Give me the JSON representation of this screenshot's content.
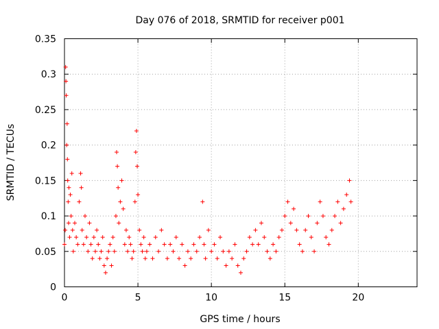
{
  "chart_data": {
    "type": "scatter",
    "title": "Day 076 of 2018, SRMTID for receiver p001",
    "xlabel": "GPS time / hours",
    "ylabel": "SRMTID / TECUs",
    "xlim": [
      0,
      24
    ],
    "ylim": [
      0,
      0.35
    ],
    "xticks": [
      0,
      5,
      10,
      15,
      20
    ],
    "yticks": [
      0,
      0.05,
      0.1,
      0.15,
      0.2,
      0.25,
      0.3,
      0.35
    ],
    "ytick_labels": [
      "0",
      "0.05",
      "0.1",
      "0.15",
      "0.2",
      "0.25",
      "0.3",
      "0.35"
    ],
    "grid": true,
    "marker": "+",
    "color": "#ff0000",
    "series": [
      {
        "name": "SRMTID",
        "points": [
          [
            0.0,
            0.06
          ],
          [
            0.05,
            0.08
          ],
          [
            0.08,
            0.31
          ],
          [
            0.1,
            0.29
          ],
          [
            0.12,
            0.27
          ],
          [
            0.15,
            0.2
          ],
          [
            0.18,
            0.23
          ],
          [
            0.2,
            0.18
          ],
          [
            0.22,
            0.15
          ],
          [
            0.25,
            0.12
          ],
          [
            0.28,
            0.09
          ],
          [
            0.3,
            0.14
          ],
          [
            0.35,
            0.07
          ],
          [
            0.4,
            0.13
          ],
          [
            0.45,
            0.1
          ],
          [
            0.5,
            0.16
          ],
          [
            0.55,
            0.08
          ],
          [
            0.6,
            0.05
          ],
          [
            0.7,
            0.09
          ],
          [
            0.8,
            0.07
          ],
          [
            0.9,
            0.06
          ],
          [
            1.0,
            0.12
          ],
          [
            1.1,
            0.16
          ],
          [
            1.15,
            0.14
          ],
          [
            1.2,
            0.08
          ],
          [
            1.3,
            0.06
          ],
          [
            1.4,
            0.1
          ],
          [
            1.5,
            0.07
          ],
          [
            1.6,
            0.05
          ],
          [
            1.7,
            0.09
          ],
          [
            1.8,
            0.06
          ],
          [
            1.9,
            0.04
          ],
          [
            2.0,
            0.07
          ],
          [
            2.1,
            0.05
          ],
          [
            2.2,
            0.08
          ],
          [
            2.3,
            0.06
          ],
          [
            2.4,
            0.04
          ],
          [
            2.5,
            0.05
          ],
          [
            2.6,
            0.07
          ],
          [
            2.7,
            0.03
          ],
          [
            2.8,
            0.02
          ],
          [
            2.9,
            0.04
          ],
          [
            3.0,
            0.05
          ],
          [
            3.1,
            0.06
          ],
          [
            3.2,
            0.03
          ],
          [
            3.3,
            0.07
          ],
          [
            3.4,
            0.05
          ],
          [
            3.5,
            0.1
          ],
          [
            3.55,
            0.19
          ],
          [
            3.6,
            0.17
          ],
          [
            3.65,
            0.14
          ],
          [
            3.7,
            0.09
          ],
          [
            3.8,
            0.12
          ],
          [
            3.9,
            0.15
          ],
          [
            4.0,
            0.11
          ],
          [
            4.1,
            0.06
          ],
          [
            4.2,
            0.08
          ],
          [
            4.3,
            0.05
          ],
          [
            4.4,
            0.07
          ],
          [
            4.5,
            0.06
          ],
          [
            4.6,
            0.04
          ],
          [
            4.7,
            0.05
          ],
          [
            4.8,
            0.12
          ],
          [
            4.85,
            0.19
          ],
          [
            4.9,
            0.22
          ],
          [
            4.95,
            0.17
          ],
          [
            5.0,
            0.13
          ],
          [
            5.1,
            0.08
          ],
          [
            5.2,
            0.06
          ],
          [
            5.3,
            0.05
          ],
          [
            5.4,
            0.07
          ],
          [
            5.5,
            0.04
          ],
          [
            5.6,
            0.05
          ],
          [
            5.8,
            0.06
          ],
          [
            6.0,
            0.04
          ],
          [
            6.2,
            0.07
          ],
          [
            6.4,
            0.05
          ],
          [
            6.6,
            0.08
          ],
          [
            6.8,
            0.06
          ],
          [
            7.0,
            0.04
          ],
          [
            7.2,
            0.06
          ],
          [
            7.4,
            0.05
          ],
          [
            7.6,
            0.07
          ],
          [
            7.8,
            0.04
          ],
          [
            8.0,
            0.06
          ],
          [
            8.2,
            0.03
          ],
          [
            8.4,
            0.05
          ],
          [
            8.6,
            0.04
          ],
          [
            8.8,
            0.06
          ],
          [
            9.0,
            0.05
          ],
          [
            9.2,
            0.07
          ],
          [
            9.4,
            0.12
          ],
          [
            9.5,
            0.06
          ],
          [
            9.6,
            0.04
          ],
          [
            9.8,
            0.08
          ],
          [
            10.0,
            0.05
          ],
          [
            10.2,
            0.06
          ],
          [
            10.4,
            0.04
          ],
          [
            10.6,
            0.07
          ],
          [
            10.8,
            0.05
          ],
          [
            11.0,
            0.03
          ],
          [
            11.2,
            0.05
          ],
          [
            11.4,
            0.04
          ],
          [
            11.6,
            0.06
          ],
          [
            11.8,
            0.03
          ],
          [
            12.0,
            0.02
          ],
          [
            12.2,
            0.04
          ],
          [
            12.4,
            0.05
          ],
          [
            12.6,
            0.07
          ],
          [
            12.8,
            0.06
          ],
          [
            13.0,
            0.08
          ],
          [
            13.2,
            0.06
          ],
          [
            13.4,
            0.09
          ],
          [
            13.6,
            0.07
          ],
          [
            13.8,
            0.05
          ],
          [
            14.0,
            0.04
          ],
          [
            14.2,
            0.06
          ],
          [
            14.4,
            0.05
          ],
          [
            14.6,
            0.07
          ],
          [
            14.8,
            0.08
          ],
          [
            15.0,
            0.1
          ],
          [
            15.2,
            0.12
          ],
          [
            15.4,
            0.09
          ],
          [
            15.6,
            0.11
          ],
          [
            15.8,
            0.08
          ],
          [
            16.0,
            0.06
          ],
          [
            16.2,
            0.05
          ],
          [
            16.4,
            0.08
          ],
          [
            16.6,
            0.1
          ],
          [
            16.8,
            0.07
          ],
          [
            17.0,
            0.05
          ],
          [
            17.2,
            0.09
          ],
          [
            17.4,
            0.12
          ],
          [
            17.6,
            0.1
          ],
          [
            17.8,
            0.07
          ],
          [
            18.0,
            0.06
          ],
          [
            18.2,
            0.08
          ],
          [
            18.4,
            0.1
          ],
          [
            18.6,
            0.12
          ],
          [
            18.8,
            0.09
          ],
          [
            19.0,
            0.11
          ],
          [
            19.2,
            0.13
          ],
          [
            19.4,
            0.15
          ],
          [
            19.5,
            0.12
          ]
        ]
      }
    ]
  }
}
